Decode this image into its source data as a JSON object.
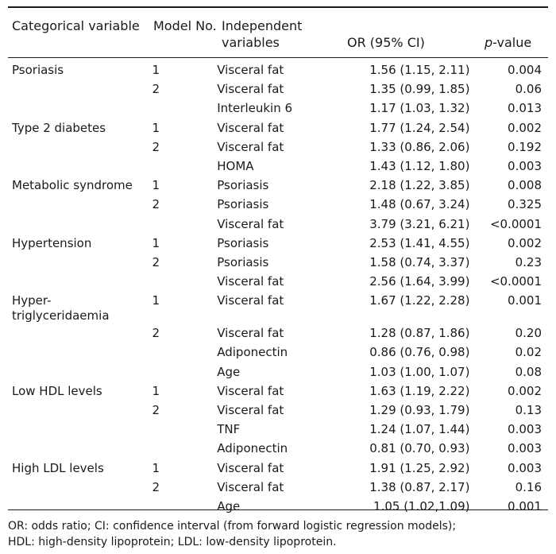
{
  "header": {
    "categorical_variable": "Categorical variable",
    "model_no": "Model No.",
    "independent_variables": "Independent variables",
    "or_ci": "OR (95% CI)",
    "p_value_italic": "p",
    "p_value_rest": "-value"
  },
  "rows": [
    {
      "category": "Psoriasis",
      "model": "1",
      "variable": "Visceral fat",
      "or": "1.56 (1.15, 2.11)",
      "p": "0.004"
    },
    {
      "category": "",
      "model": "2",
      "variable": "Visceral fat",
      "or": "1.35 (0.99, 1.85)",
      "p": "0.06"
    },
    {
      "category": "",
      "model": "",
      "variable": "Interleukin 6",
      "or": "1.17 (1.03, 1.32)",
      "p": "0.013"
    },
    {
      "category": "Type 2 diabetes",
      "model": "1",
      "variable": "Visceral fat",
      "or": "1.77 (1.24, 2.54)",
      "p": "0.002"
    },
    {
      "category": "",
      "model": "2",
      "variable": "Visceral fat",
      "or": "1.33 (0.86, 2.06)",
      "p": "0.192"
    },
    {
      "category": "",
      "model": "",
      "variable": "HOMA",
      "or": "1.43 (1.12, 1.80)",
      "p": "0.003"
    },
    {
      "category": "Metabolic syndrome",
      "model": "1",
      "variable": "Psoriasis",
      "or": "2.18 (1.22, 3.85)",
      "p": "0.008"
    },
    {
      "category": "",
      "model": "2",
      "variable": "Psoriasis",
      "or": "1.48 (0.67, 3.24)",
      "p": "0.325"
    },
    {
      "category": "",
      "model": "",
      "variable": "Visceral fat",
      "or": "3.79 (3.21, 6.21)",
      "p": "<0.0001"
    },
    {
      "category": "Hypertension",
      "model": "1",
      "variable": "Psoriasis",
      "or": "2.53 (1.41, 4.55)",
      "p": "0.002"
    },
    {
      "category": "",
      "model": "2",
      "variable": "Psoriasis",
      "or": "1.58 (0.74, 3.37)",
      "p": "0.23"
    },
    {
      "category": "",
      "model": "",
      "variable": "Visceral fat",
      "or": "2.56 (1.64, 3.99)",
      "p": "<0.0001"
    },
    {
      "category": "Hyper-triglyceridaemia",
      "model": "1",
      "variable": "Visceral fat",
      "or": "1.67 (1.22, 2.28)",
      "p": "0.001"
    },
    {
      "category": "",
      "model": "2",
      "variable": "Visceral fat",
      "or": "1.28 (0.87, 1.86)",
      "p": "0.20"
    },
    {
      "category": "",
      "model": "",
      "variable": "Adiponectin",
      "or": "0.86 (0.76, 0.98)",
      "p": "0.02"
    },
    {
      "category": "",
      "model": "",
      "variable": "Age",
      "or": "1.03 (1.00, 1.07)",
      "p": "0.08"
    },
    {
      "category": "Low HDL levels",
      "model": "1",
      "variable": "Visceral fat",
      "or": "1.63 (1.19, 2.22)",
      "p": "0.002"
    },
    {
      "category": "",
      "model": "2",
      "variable": "Visceral fat",
      "or": "1.29 (0.93, 1.79)",
      "p": "0.13"
    },
    {
      "category": "",
      "model": "",
      "variable": "TNF",
      "or": "1.24 (1.07, 1.44)",
      "p": "0.003"
    },
    {
      "category": "",
      "model": "",
      "variable": "Adiponectin",
      "or": "0.81 (0.70, 0.93)",
      "p": "0.003"
    },
    {
      "category": "High LDL levels",
      "model": "1",
      "variable": "Visceral fat",
      "or": "1.91 (1.25, 2.92)",
      "p": "0.003"
    },
    {
      "category": "",
      "model": "2",
      "variable": "Visceral fat",
      "or": "1.38 (0.87, 2.17)",
      "p": "0.16"
    },
    {
      "category": "",
      "model": "",
      "variable": "Age",
      "or": "1.05 (1.02,1.09)",
      "p": "0.001"
    }
  ],
  "footnote": {
    "line1": "OR: odds ratio; CI: confidence interval (from forward logistic regression models);",
    "line2": "HDL: high-density lipoprotein; LDL: low-density lipoprotein."
  }
}
